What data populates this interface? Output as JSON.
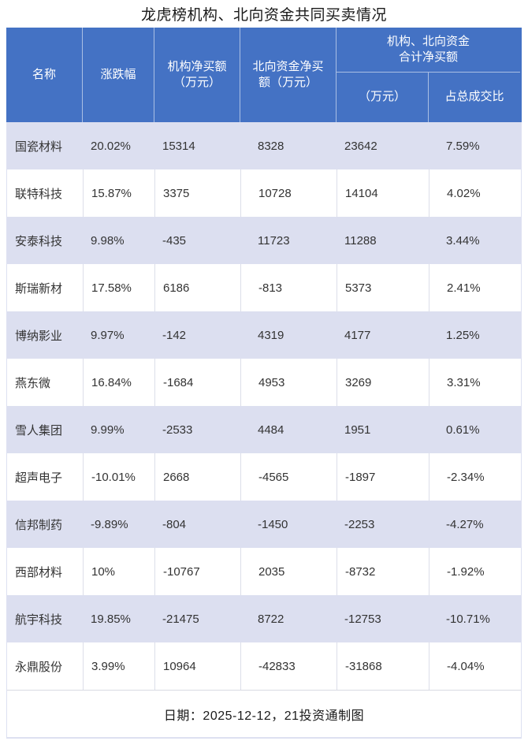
{
  "title": "龙虎榜机构、北向资金共同买卖情况",
  "header": {
    "name": "名称",
    "change": "涨跌幅",
    "inst_net_buy": "机构净买额\n（万元）",
    "north_net_buy": "北向资金净买\n额（万元）",
    "combined_group": "机构、北向资金\n合计净买额",
    "combined_amount": "（万元）",
    "combined_ratio": "占总成交比"
  },
  "footer": {
    "note": "日期：2025-12-12，21投资通制图"
  },
  "colors": {
    "header_bg": "#4472c4",
    "header_text": "#ffffff",
    "shaded_row_bg": "#dcdff0",
    "plain_row_bg": "#ffffff",
    "row_divider": "#dcdee9",
    "outer_border": "#dde0f1",
    "body_text": "#333333"
  },
  "chart_data": {
    "type": "table",
    "title": "龙虎榜机构、北向资金共同买卖情况",
    "columns": [
      "名称",
      "涨跌幅",
      "机构净买额（万元）",
      "北向资金净买额（万元）",
      "机构、北向资金合计净买额（万元）",
      "机构、北向资金合计净买额占总成交比"
    ],
    "rows": [
      [
        "国瓷材料",
        "20.02%",
        "15314",
        "8328",
        "23642",
        "7.59%"
      ],
      [
        "联特科技",
        "15.87%",
        "3375",
        "10728",
        "14104",
        "4.02%"
      ],
      [
        "安泰科技",
        "9.98%",
        "-435",
        "11723",
        "11288",
        "3.44%"
      ],
      [
        "斯瑞新材",
        "17.58%",
        "6186",
        "-813",
        "5373",
        "2.41%"
      ],
      [
        "博纳影业",
        "9.97%",
        "-142",
        "4319",
        "4177",
        "1.25%"
      ],
      [
        "燕东微",
        "16.84%",
        "-1684",
        "4953",
        "3269",
        "3.31%"
      ],
      [
        "雪人集团",
        "9.99%",
        "-2533",
        "4484",
        "1951",
        "0.61%"
      ],
      [
        "超声电子",
        "-10.01%",
        "2668",
        "-4565",
        "-1897",
        "-2.34%"
      ],
      [
        "信邦制药",
        "-9.89%",
        "-804",
        "-1450",
        "-2253",
        "-4.27%"
      ],
      [
        "西部材料",
        "10%",
        "-10767",
        "2035",
        "-8732",
        "-1.92%"
      ],
      [
        "航宇科技",
        "19.85%",
        "-21475",
        "8722",
        "-12753",
        "-10.71%"
      ],
      [
        "永鼎股份",
        "3.99%",
        "10964",
        "-42833",
        "-31868",
        "-4.04%"
      ]
    ],
    "footer": "日期：2025-12-12，21投资通制图"
  }
}
